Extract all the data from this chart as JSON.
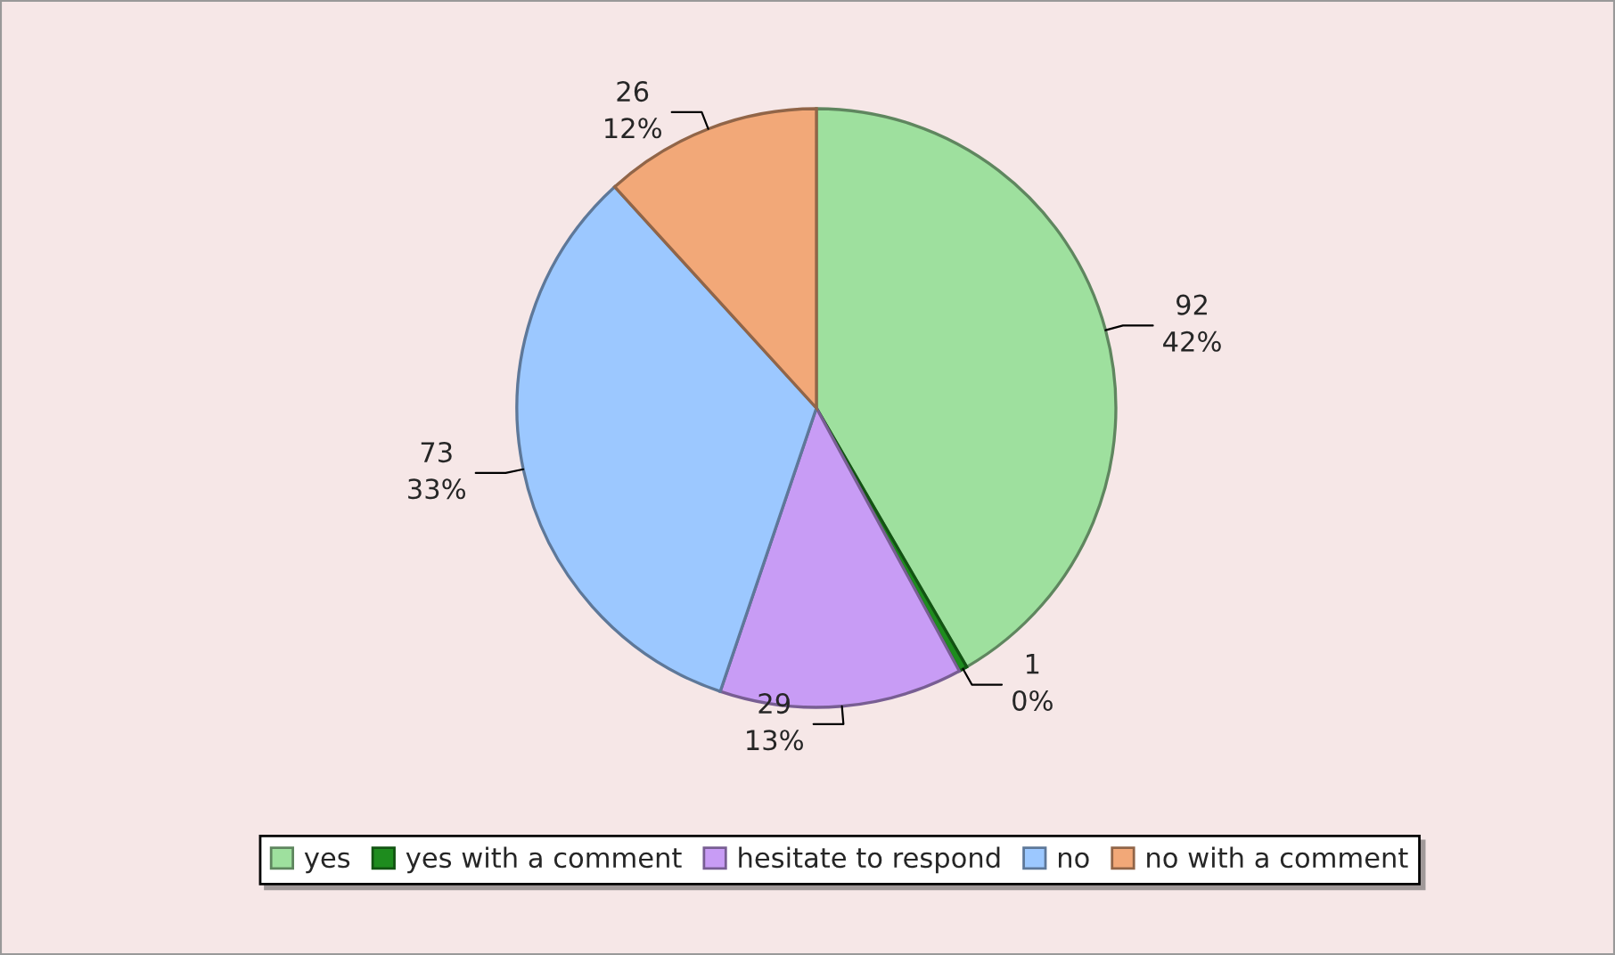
{
  "chart_data": {
    "type": "pie",
    "categories": [
      "yes",
      "yes with a comment",
      "hesitate to respond",
      "no",
      "no with a comment"
    ],
    "values": [
      92,
      1,
      29,
      73,
      26
    ],
    "colors": [
      "#9ee09e",
      "#1e8c1e",
      "#c89cf5",
      "#9cc8ff",
      "#f2a878"
    ],
    "value_labels": [
      "92\n42%",
      "1\n0%",
      "29\n13%",
      "73\n33%",
      "26\n12%"
    ],
    "legend": "bottom"
  }
}
